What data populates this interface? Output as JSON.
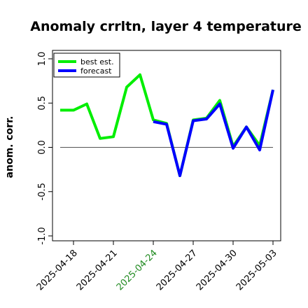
{
  "chart_data": {
    "type": "line",
    "title": "Anomaly crrltn, layer 4 temperature",
    "ylabel": "anom. corr.",
    "xlabel": "",
    "ylim": [
      -1.0,
      1.0
    ],
    "yticks": [
      "-1.0",
      "-0.5",
      "0.0",
      "0.5",
      "1.0"
    ],
    "ytick_values": [
      -1.0,
      -0.5,
      0.0,
      0.5,
      1.0
    ],
    "reference_line": 0.0,
    "x": [
      "2025-04-17",
      "2025-04-18",
      "2025-04-19",
      "2025-04-20",
      "2025-04-21",
      "2025-04-22",
      "2025-04-23",
      "2025-04-24",
      "2025-04-25",
      "2025-04-26",
      "2025-04-27",
      "2025-04-28",
      "2025-04-29",
      "2025-04-30",
      "2025-05-01",
      "2025-05-02",
      "2025-05-03"
    ],
    "xtick_labels": [
      "2025-04-18",
      "2025-04-21",
      "2025-04-24",
      "2025-04-27",
      "2025-04-30",
      "2025-05-03"
    ],
    "xtick_colors": [
      "#000000",
      "#000000",
      "#228B22",
      "#000000",
      "#000000",
      "#000000"
    ],
    "series": [
      {
        "name": "best est.",
        "color": "#00ee00",
        "values": [
          0.42,
          0.42,
          0.49,
          0.1,
          0.12,
          0.68,
          0.82,
          0.31,
          0.27,
          -0.32,
          0.31,
          0.33,
          0.53,
          0.01,
          0.23,
          0.02,
          0.65
        ]
      },
      {
        "name": "forecast",
        "color": "#0000ff",
        "values": [
          null,
          null,
          null,
          null,
          null,
          null,
          null,
          0.29,
          0.26,
          -0.32,
          0.3,
          0.32,
          0.49,
          -0.01,
          0.23,
          -0.03,
          0.65
        ]
      }
    ],
    "legend_position": "top-left",
    "grid": false
  }
}
